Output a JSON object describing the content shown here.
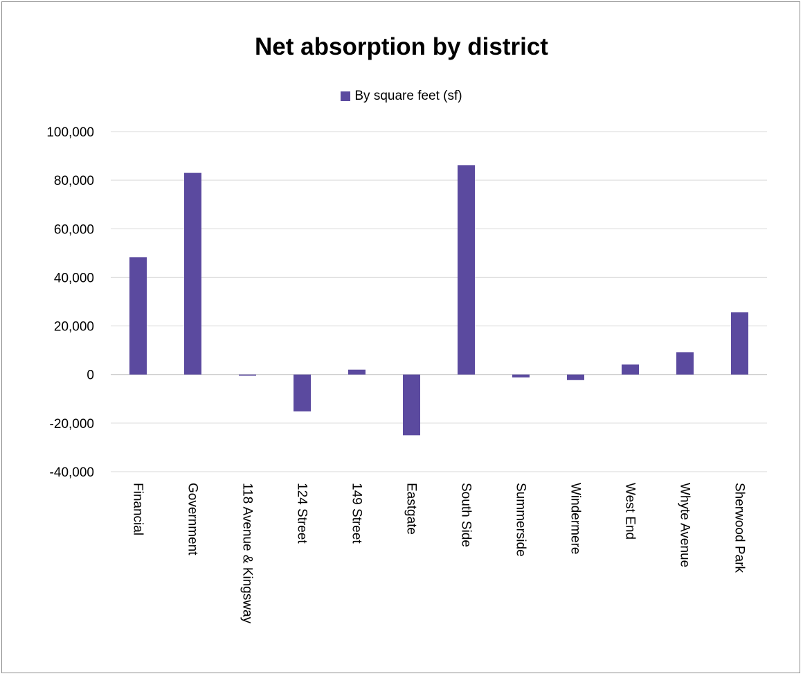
{
  "chart_data": {
    "type": "bar",
    "title": "Net absorption by district",
    "legend": {
      "position": "top",
      "entries": [
        "By square feet (sf)"
      ]
    },
    "series": [
      {
        "name": "By square feet (sf)",
        "color": "#5b4a9f",
        "values": [
          48300,
          83000,
          -500,
          -15200,
          2000,
          -25000,
          86200,
          -1200,
          -2300,
          4100,
          9200,
          25600
        ]
      }
    ],
    "categories": [
      "Financial",
      "Government",
      "118 Avenue & Kingsway",
      "124 Street",
      "149 Street",
      "Eastgate",
      "South Side",
      "Summerside",
      "Windermere",
      "West End",
      "Whyte Avenue",
      "Sherwood Park"
    ],
    "ylim": [
      -40000,
      100000
    ],
    "yticks": [
      "100,000",
      "80,000",
      "60,000",
      "40,000",
      "20,000",
      "0",
      "-20,000",
      "-40,000"
    ],
    "ytick_values": [
      100000,
      80000,
      60000,
      40000,
      20000,
      0,
      -20000,
      -40000
    ],
    "grid": true,
    "xlabel": "",
    "ylabel": ""
  }
}
